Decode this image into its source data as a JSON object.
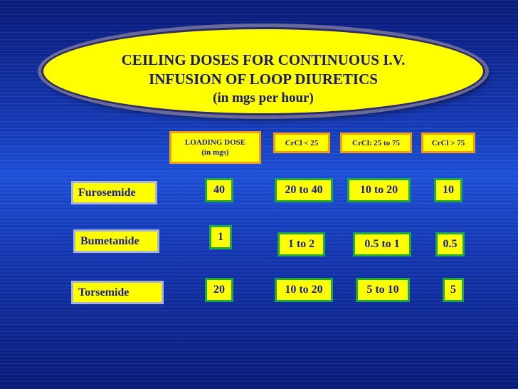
{
  "title": {
    "line1": "CEILING DOSES FOR CONTINUOUS I.V.",
    "line2": "INFUSION OF LOOP DIURETICS",
    "line3": "(in mgs per hour)"
  },
  "headers": {
    "loading_dose": "LOADING DOSE",
    "loading_dose_unit": "(in mgs)",
    "crcl_lt_25": "CrCl < 25",
    "crcl_25_75": "CrCl: 25 to 75",
    "crcl_gt_75": "CrCl > 75"
  },
  "rows": [
    {
      "drug": "Furosemide",
      "loading": "40",
      "crcl_lt_25": "20 to 40",
      "crcl_25_75": "10 to 20",
      "crcl_gt_75": "10"
    },
    {
      "drug": "Bumetanide",
      "loading": "1",
      "crcl_lt_25": "1 to 2",
      "crcl_25_75": "0.5 to 1",
      "crcl_gt_75": "0.5"
    },
    {
      "drug": "Torsemide",
      "loading": "20",
      "crcl_lt_25": "10 to 20",
      "crcl_25_75": "5 to 10",
      "crcl_gt_75": "5"
    }
  ],
  "colors": {
    "box_fill": "#ffff00",
    "header_border": "#f29a1a",
    "value_border": "#1aa84a",
    "drug_border": "#a9b4d6",
    "text": "#1a1a9a",
    "background": "#1437b0"
  }
}
